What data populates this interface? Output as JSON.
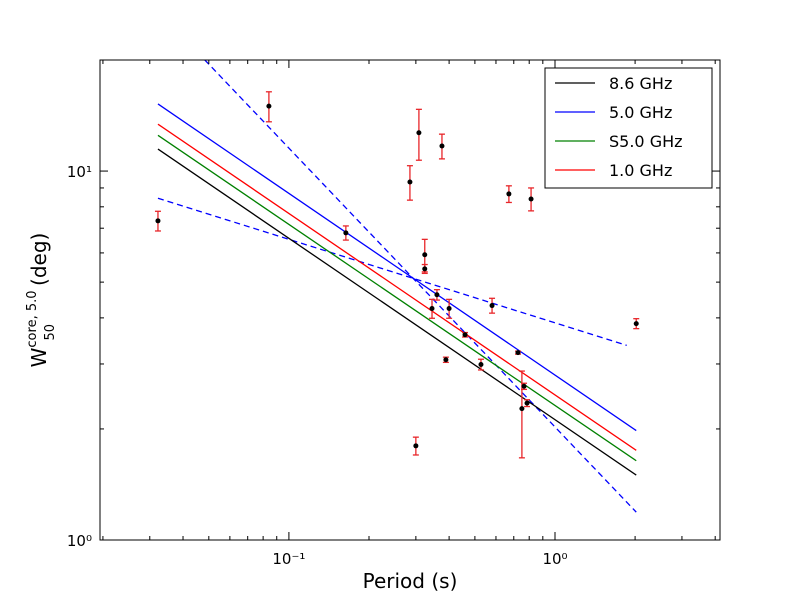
{
  "chart_data": {
    "type": "scatter",
    "xlabel": "Period (s)",
    "ylabel": {
      "base": "W",
      "sub": "50",
      "sup": "core, 5.0",
      "unit": "(deg)"
    },
    "xlog": true,
    "ylog": true,
    "xlim": [
      0.0195,
      4.17
    ],
    "ylim": [
      1,
      20
    ],
    "xticks": [
      {
        "value": 0.1,
        "label": "10⁻¹"
      },
      {
        "value": 1,
        "label": "10⁰"
      }
    ],
    "xticks_minor": [
      0.02,
      0.03,
      0.04,
      0.05,
      0.06,
      0.07,
      0.08,
      0.09,
      0.2,
      0.3,
      0.4,
      0.5,
      0.6,
      0.7,
      0.8,
      0.9,
      2,
      3,
      4
    ],
    "yticks": [
      {
        "value": 1,
        "label": "10⁰"
      },
      {
        "value": 10,
        "label": "10¹"
      }
    ],
    "yticks_minor": [
      2,
      3,
      4,
      5,
      6,
      7,
      8,
      9
    ],
    "legend": "upper right",
    "points": {
      "color": "#000000",
      "error_color": "#e8262a",
      "x": [
        0.0322,
        0.0841,
        0.1637,
        0.285,
        0.308,
        0.3,
        0.324,
        0.324,
        0.345,
        0.36,
        0.376,
        0.389,
        0.4,
        0.459,
        0.527,
        0.58,
        0.671,
        0.726,
        0.751,
        0.765,
        0.785,
        0.813,
        2.02
      ],
      "values": [
        7.33,
        15.0,
        6.8,
        9.34,
        12.7,
        1.8,
        5.93,
        5.43,
        4.24,
        4.62,
        11.69,
        3.08,
        4.24,
        3.6,
        2.99,
        4.32,
        8.67,
        3.22,
        2.27,
        2.61,
        2.35,
        8.4,
        3.86
      ],
      "errors": [
        0.45,
        1.4,
        0.3,
        1.0,
        2.0,
        0.1,
        0.6,
        0.15,
        0.25,
        0.15,
        0.9,
        0.05,
        0.25,
        0.05,
        0.1,
        0.2,
        0.45,
        0.03,
        0.6,
        0.05,
        0.05,
        0.6,
        0.12
      ]
    },
    "series": [
      {
        "name": "8.6 GHz",
        "color": "#000000",
        "x": [
          0.0322,
          2.02
        ],
        "values": [
          11.47,
          1.5
        ]
      },
      {
        "name": "5.0 GHz",
        "color": "#0000ff",
        "x": [
          0.0322,
          2.02
        ],
        "values": [
          15.2,
          1.98
        ]
      },
      {
        "name": "S5.0 GHz",
        "color": "#008000",
        "x": [
          0.0322,
          2.02
        ],
        "values": [
          12.5,
          1.64
        ]
      },
      {
        "name": "1.0 GHz",
        "color": "#ff0000",
        "x": [
          0.0322,
          2.02
        ],
        "values": [
          13.4,
          1.75
        ]
      }
    ],
    "dashed_lines": [
      {
        "color": "#0000ff",
        "x": [
          0.0322,
          1.86
        ],
        "values": [
          8.44,
          3.37
        ]
      },
      {
        "color": "#0000ff",
        "x": [
          0.0483,
          2.02
        ],
        "values": [
          20,
          1.19
        ]
      }
    ]
  }
}
